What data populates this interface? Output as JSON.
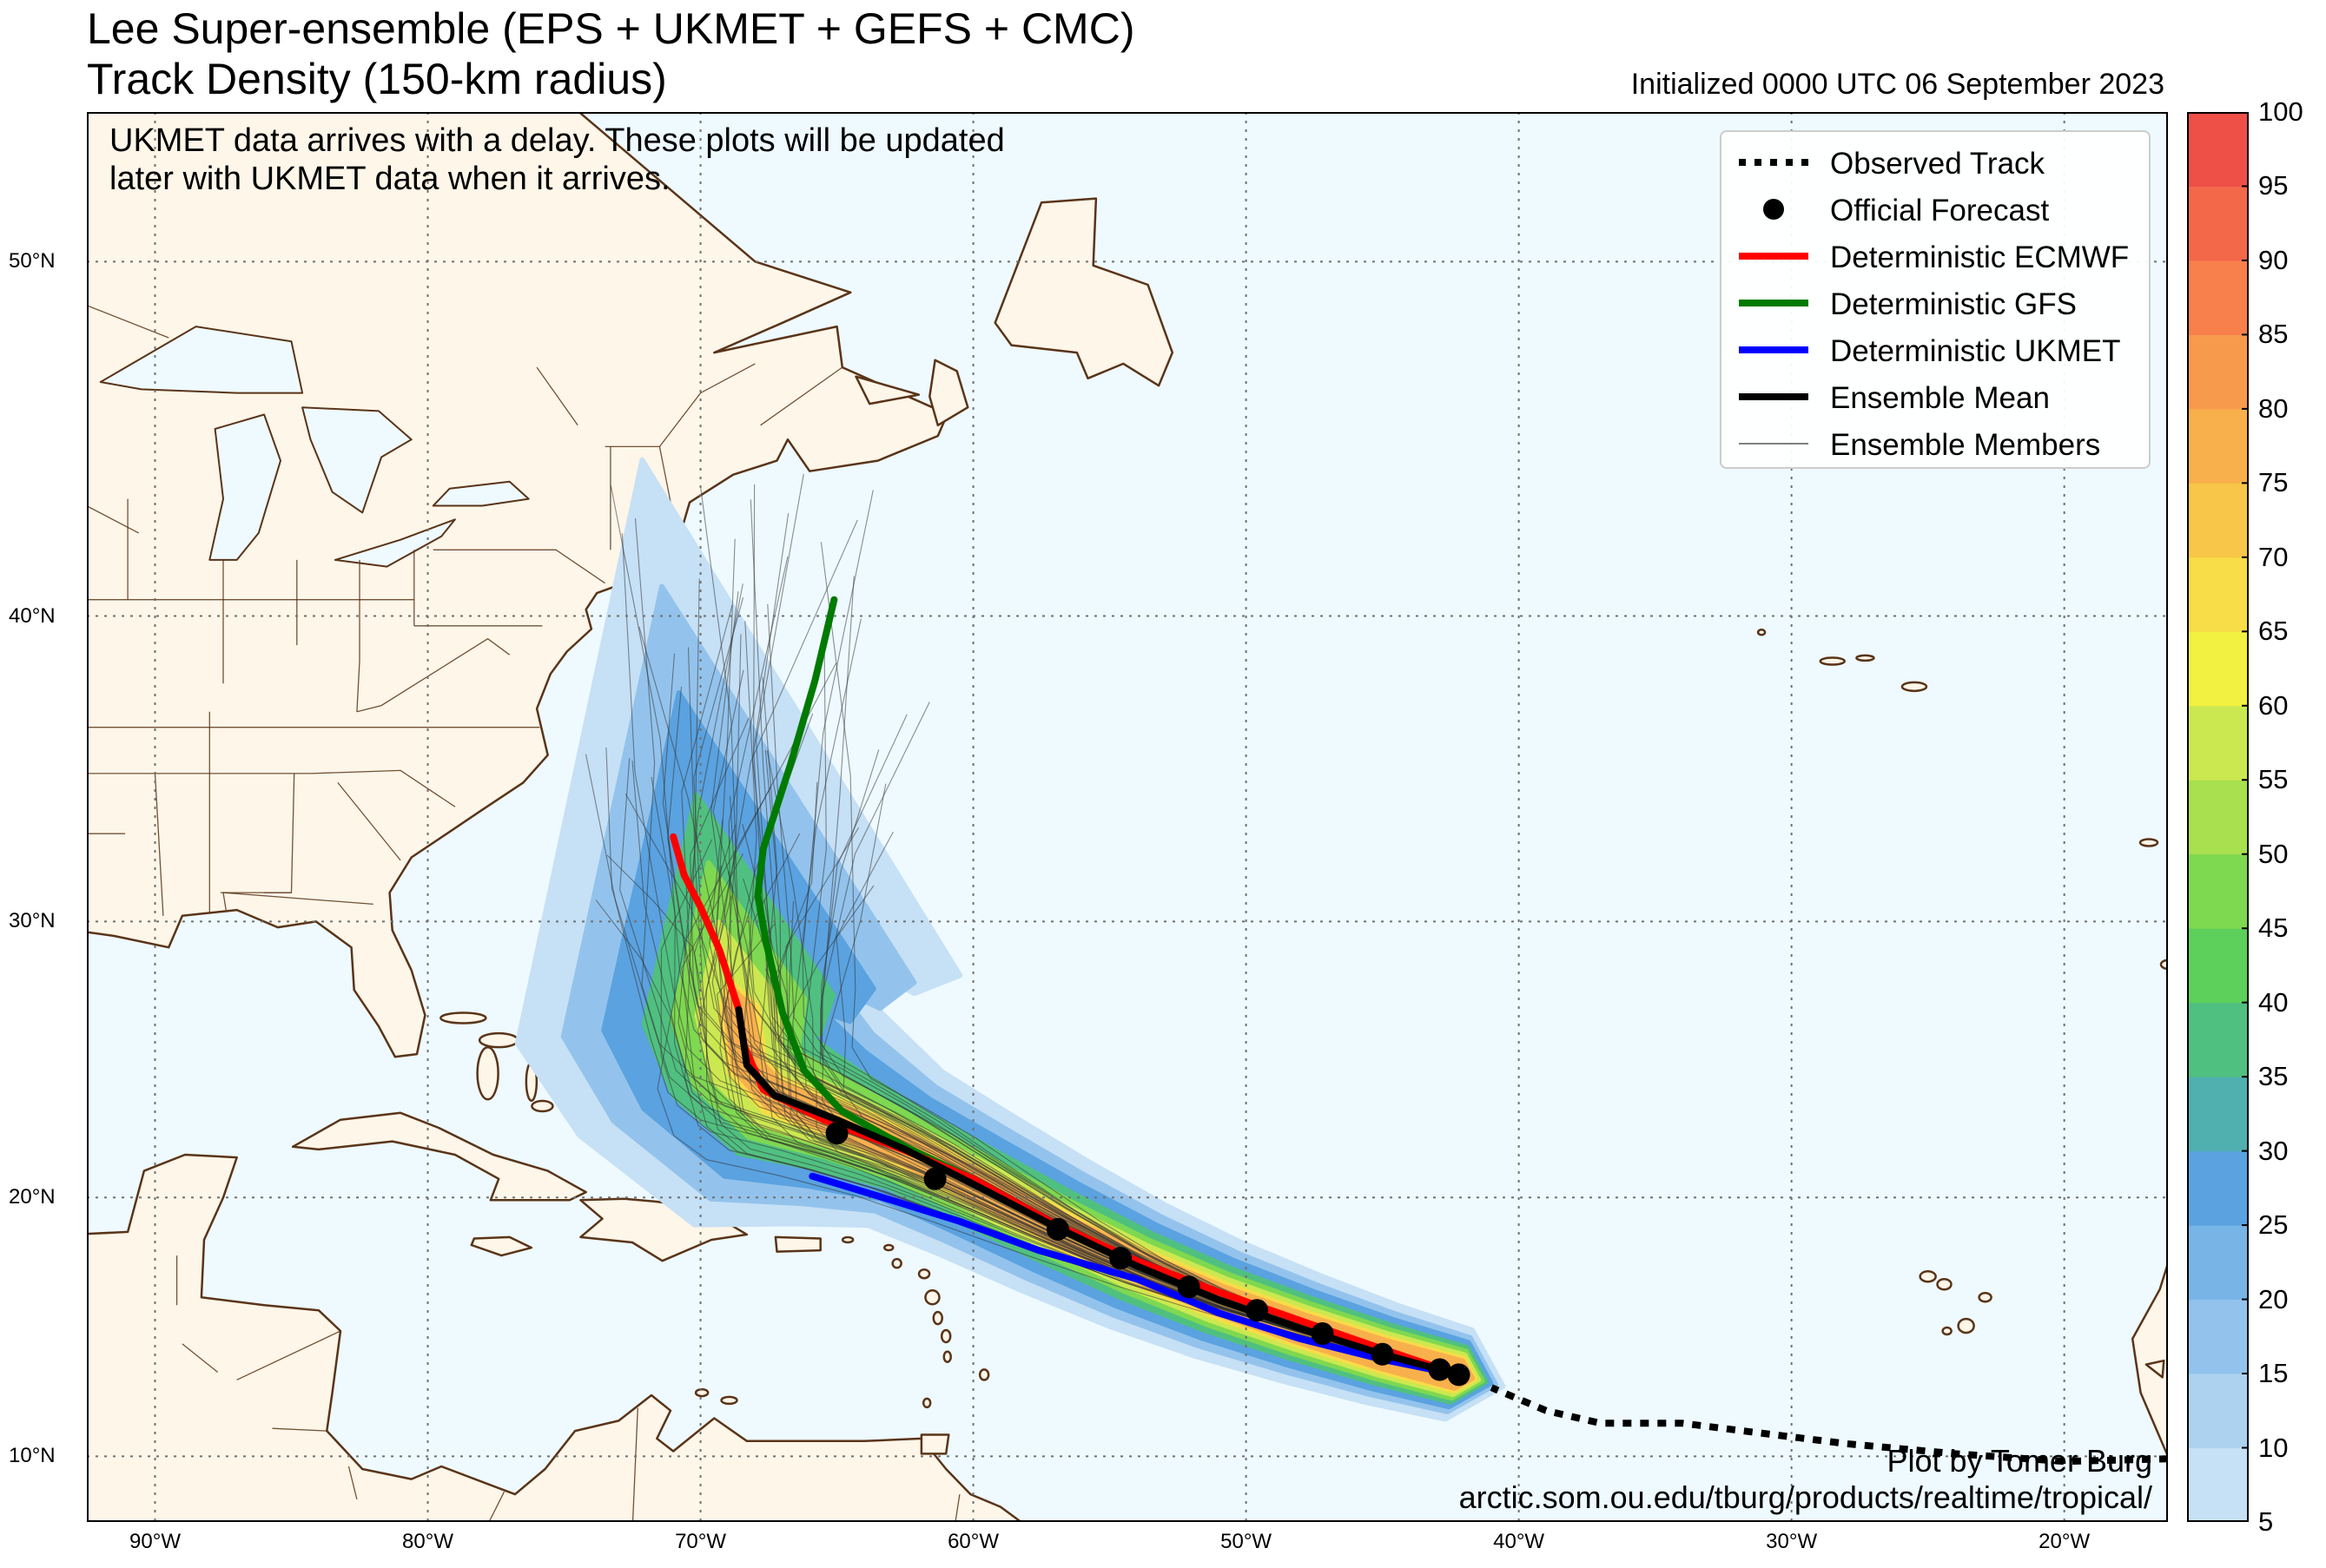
{
  "title": {
    "line1": "Lee Super-ensemble (EPS + UKMET + GEFS + CMC)",
    "line2": "Track Density (150-km radius)",
    "initialized": "Initialized 0000 UTC 06 September 2023"
  },
  "note": "UKMET data arrives with a delay. These plots will be updated later with UKMET data when it arrives.",
  "credit": {
    "line1": "Plot by Tomer Burg",
    "line2": "arctic.som.ou.edu/tburg/products/realtime/tropical/"
  },
  "legend": [
    {
      "label": "Observed Track",
      "style": "dotted",
      "color": "#000000"
    },
    {
      "label": "Official Forecast",
      "style": "marker",
      "color": "#000000"
    },
    {
      "label": "Deterministic ECMWF",
      "style": "line",
      "color": "#ff0000"
    },
    {
      "label": "Deterministic GFS",
      "style": "line",
      "color": "#007a00"
    },
    {
      "label": "Deterministic UKMET",
      "style": "line",
      "color": "#0000ff"
    },
    {
      "label": "Ensemble Mean",
      "style": "line",
      "color": "#000000"
    },
    {
      "label": "Ensemble Members",
      "style": "thin",
      "color": "#555555"
    }
  ],
  "axes": {
    "lon_range": [
      -92.5,
      -16.2
    ],
    "lat_range": [
      7.4,
      53.7
    ],
    "lon_ticks": [
      {
        "value": -90,
        "label": "90°W"
      },
      {
        "value": -80,
        "label": "80°W"
      },
      {
        "value": -70,
        "label": "70°W"
      },
      {
        "value": -60,
        "label": "60°W"
      },
      {
        "value": -50,
        "label": "50°W"
      },
      {
        "value": -40,
        "label": "40°W"
      },
      {
        "value": -30,
        "label": "30°W"
      },
      {
        "value": -20,
        "label": "20°W"
      }
    ],
    "lat_ticks": [
      {
        "value": 10,
        "label": "10°N"
      },
      {
        "value": 20,
        "label": "20°N"
      },
      {
        "value": 30,
        "label": "30°N"
      },
      {
        "value": 40,
        "label": "40°N"
      },
      {
        "value": 50,
        "label": "50°N"
      }
    ]
  },
  "colorbar": {
    "min": 5,
    "max": 100,
    "tick_labels": [
      "5",
      "10",
      "15",
      "20",
      "25",
      "30",
      "35",
      "40",
      "45",
      "50",
      "55",
      "60",
      "65",
      "70",
      "75",
      "80",
      "85",
      "90",
      "95",
      "100"
    ],
    "bins": [
      {
        "from": 5,
        "color": "#c6e0f5"
      },
      {
        "from": 10,
        "color": "#acd2f0"
      },
      {
        "from": 15,
        "color": "#93c3ec"
      },
      {
        "from": 20,
        "color": "#78b4e6"
      },
      {
        "from": 25,
        "color": "#5aa2e0"
      },
      {
        "from": 30,
        "color": "#50b0b0"
      },
      {
        "from": 35,
        "color": "#50c080"
      },
      {
        "from": 40,
        "color": "#5cd05a"
      },
      {
        "from": 45,
        "color": "#7ed850"
      },
      {
        "from": 50,
        "color": "#a8e050"
      },
      {
        "from": 55,
        "color": "#cce850"
      },
      {
        "from": 60,
        "color": "#f2f040"
      },
      {
        "from": 65,
        "color": "#f8dc48"
      },
      {
        "from": 70,
        "color": "#f8c648"
      },
      {
        "from": 75,
        "color": "#f8b04c"
      },
      {
        "from": 80,
        "color": "#f89a4c"
      },
      {
        "from": 85,
        "color": "#f8804c"
      },
      {
        "from": 90,
        "color": "#f4684a"
      },
      {
        "from": 95,
        "color": "#ee5048"
      }
    ]
  },
  "tracks": {
    "observed": [
      [
        -16.2,
        9.9
      ],
      [
        -20,
        9.8
      ],
      [
        -24,
        10.1
      ],
      [
        -28,
        10.5
      ],
      [
        -31,
        10.9
      ],
      [
        -34,
        11.3
      ],
      [
        -37,
        11.3
      ],
      [
        -39,
        11.8
      ],
      [
        -41,
        12.7
      ]
    ],
    "official": [
      [
        -42.2,
        13.2
      ],
      [
        -42.9,
        13.4
      ],
      [
        -45,
        14.0
      ],
      [
        -47.2,
        14.8
      ],
      [
        -49.6,
        15.7
      ],
      [
        -52.1,
        16.6
      ],
      [
        -54.6,
        17.7
      ],
      [
        -56.9,
        18.8
      ],
      [
        -61.4,
        20.7
      ],
      [
        -65,
        22.4
      ]
    ],
    "ecmwf": [
      [
        -42.2,
        13.2
      ],
      [
        -45,
        14.2
      ],
      [
        -48,
        15.3
      ],
      [
        -51,
        16.4
      ],
      [
        -54,
        17.6
      ],
      [
        -57,
        19.0
      ],
      [
        -60,
        20.7
      ],
      [
        -62.6,
        21.8
      ],
      [
        -65.5,
        22.9
      ],
      [
        -67.7,
        24.0
      ],
      [
        -68.4,
        25.6
      ],
      [
        -68.6,
        26.9
      ],
      [
        -69.3,
        29.0
      ],
      [
        -70.0,
        30.5
      ],
      [
        -70.6,
        31.6
      ],
      [
        -71.0,
        32.9
      ]
    ],
    "gfs": [
      [
        -42.2,
        13.2
      ],
      [
        -45,
        14.1
      ],
      [
        -48,
        15.0
      ],
      [
        -51,
        16.1
      ],
      [
        -54,
        17.4
      ],
      [
        -57,
        18.9
      ],
      [
        -60,
        20.7
      ],
      [
        -62.5,
        21.9
      ],
      [
        -64.8,
        23.2
      ],
      [
        -66.2,
        24.7
      ],
      [
        -67.0,
        26.8
      ],
      [
        -67.6,
        29.3
      ],
      [
        -67.9,
        30.9
      ],
      [
        -67.7,
        32.5
      ],
      [
        -66.7,
        35.3
      ],
      [
        -65.8,
        38.0
      ],
      [
        -65.1,
        40.5
      ]
    ],
    "ukmet": [
      [
        -42.2,
        13.2
      ],
      [
        -45,
        13.8
      ],
      [
        -48,
        14.6
      ],
      [
        -51,
        15.6
      ],
      [
        -54,
        16.9
      ],
      [
        -57.6,
        18.0
      ],
      [
        -60.5,
        19.1
      ],
      [
        -63,
        19.9
      ],
      [
        -65.9,
        20.8
      ]
    ],
    "mean": [
      [
        -42.2,
        13.2
      ],
      [
        -45,
        14.0
      ],
      [
        -48,
        15.0
      ],
      [
        -51,
        16.1
      ],
      [
        -54,
        17.4
      ],
      [
        -57,
        18.9
      ],
      [
        -60,
        20.5
      ],
      [
        -62.5,
        21.8
      ],
      [
        -65,
        22.9
      ],
      [
        -67.3,
        23.8
      ],
      [
        -68.3,
        24.9
      ],
      [
        -68.6,
        26.9
      ]
    ]
  },
  "density": [
    {
      "pct": 5,
      "halfwidth": [
        1.8,
        3.6
      ],
      "tail_spread": 4.6
    },
    {
      "pct": 15,
      "halfwidth": [
        1.5,
        2.9
      ],
      "tail_spread": 3.6
    },
    {
      "pct": 25,
      "halfwidth": [
        1.3,
        2.3
      ],
      "tail_spread": 2.7
    },
    {
      "pct": 35,
      "halfwidth": [
        1.1,
        1.7
      ],
      "tail_spread": 1.8
    },
    {
      "pct": 45,
      "halfwidth": [
        0.95,
        1.25
      ],
      "tail_spread": 1.2
    },
    {
      "pct": 55,
      "halfwidth": [
        0.8,
        0.95
      ],
      "tail_spread": 0.6
    },
    {
      "pct": 65,
      "halfwidth": [
        0.65,
        0.7
      ],
      "tail_spread": 0.0
    },
    {
      "pct": 75,
      "halfwidth": [
        0.55,
        0.5
      ],
      "tail_spread": 0.0
    }
  ],
  "map_colors": {
    "ocean": "#eefaff",
    "land": "#fdf6e9",
    "coast": "#5a3418",
    "grid": "#707070",
    "lakes": "#eefaff"
  }
}
